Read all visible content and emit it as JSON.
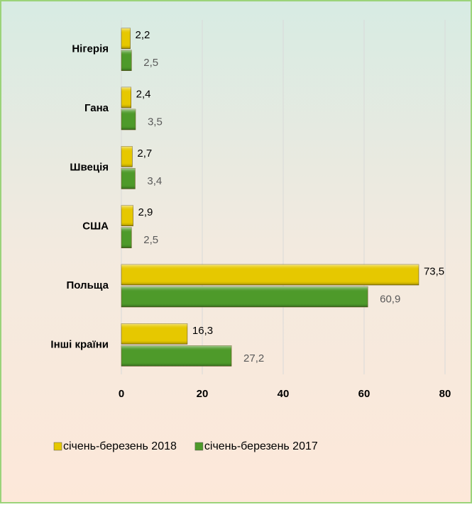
{
  "chart_data": {
    "type": "bar",
    "orientation": "horizontal",
    "categories": [
      "Нігерія",
      "Гана",
      "Швеція",
      "США",
      "Польща",
      "Інші країни"
    ],
    "series": [
      {
        "name": "січень-березень 2018",
        "color": "#e6c800",
        "values": [
          2.2,
          2.4,
          2.7,
          2.9,
          73.5,
          16.3
        ],
        "value_labels": [
          "2,2",
          "2,4",
          "2,7",
          "2,9",
          "73,5",
          "16,3"
        ]
      },
      {
        "name": "січень-березень 2017",
        "color": "#4e9a2a",
        "values": [
          2.5,
          3.5,
          3.4,
          2.5,
          60.9,
          27.2
        ],
        "value_labels": [
          "2,5",
          "3,5",
          "3,4",
          "2,5",
          "60,9",
          "27,2"
        ]
      }
    ],
    "xlim": [
      0,
      80
    ],
    "xticks": [
      0,
      20,
      40,
      60,
      80
    ],
    "grid": true,
    "legend": "bottom"
  }
}
